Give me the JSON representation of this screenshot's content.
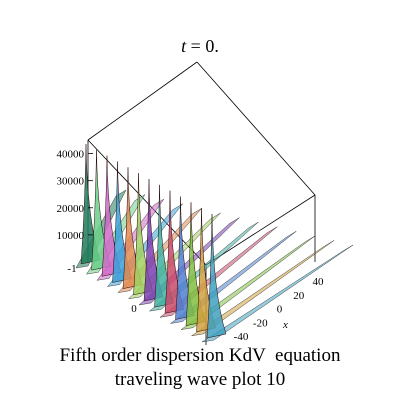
{
  "chart_data": {
    "type": "surface",
    "title_lhs": "t",
    "title_rhs": " = 0.",
    "caption_line1": "Fifth order dispersion KdV  equation",
    "caption_line2": "traveling wave plot 10",
    "xlabel": "x",
    "x_ticks": [
      "-40",
      "-20",
      "0",
      "20",
      "40"
    ],
    "y_ticks": [
      "-1",
      "0"
    ],
    "z_ticks": [
      "10000",
      "20000",
      "30000",
      "40000"
    ],
    "zlim": [
      0,
      45000
    ],
    "peak_count": 13,
    "grid": false,
    "legend": "none"
  }
}
